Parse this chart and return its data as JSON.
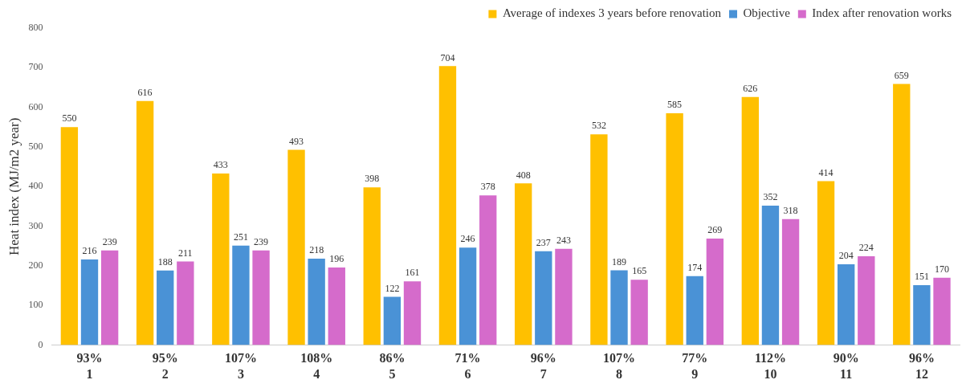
{
  "chart_data": {
    "type": "bar",
    "ylabel": "Heat index (MJ/m2 year)",
    "categories": [
      "93%\n1",
      "95%\n2",
      "107%\n3",
      "108%\n4",
      "86%\n5",
      "71%\n6",
      "96%\n7",
      "107%\n8",
      "77%\n9",
      "112%\n10",
      "90%\n11",
      "96%\n12"
    ],
    "series": [
      {
        "name": "Average of indexes 3 years before renovation",
        "color": "#ffc000",
        "values": [
          550,
          616,
          433,
          493,
          398,
          704,
          408,
          532,
          585,
          626,
          414,
          659
        ]
      },
      {
        "name": "Objective",
        "color": "#4a92d6",
        "values": [
          216,
          188,
          251,
          218,
          122,
          246,
          237,
          189,
          174,
          352,
          204,
          151
        ]
      },
      {
        "name": "Index after renovation works",
        "color": "#d56bcb",
        "values": [
          239,
          211,
          239,
          196,
          161,
          378,
          243,
          165,
          269,
          318,
          224,
          170
        ]
      }
    ],
    "ylim": [
      0,
      800
    ],
    "yticks": [
      0,
      100,
      200,
      300,
      400,
      500,
      600,
      700,
      800
    ],
    "grid": false,
    "legend": "top",
    "data_labels": true
  }
}
